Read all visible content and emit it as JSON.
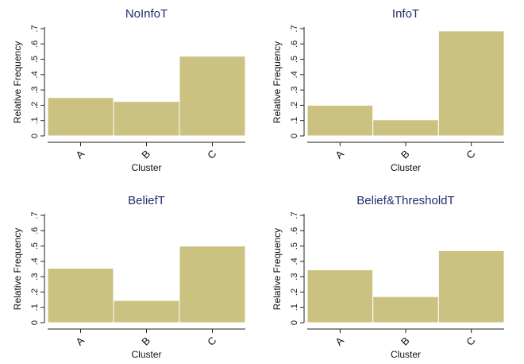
{
  "chart_data": [
    {
      "type": "bar",
      "title": "NoInfoT",
      "xlabel": "Cluster",
      "ylabel": "Relative Frequency",
      "categories": [
        "A",
        "B",
        "C"
      ],
      "values": [
        0.25,
        0.225,
        0.52
      ],
      "ylim": [
        0,
        0.7
      ],
      "yticks": [
        "0",
        ".1",
        ".2",
        ".3",
        ".4",
        ".5",
        ".6",
        ".7"
      ],
      "bar_color": "#cbc281",
      "grid": false
    },
    {
      "type": "bar",
      "title": "InfoT",
      "xlabel": "Cluster",
      "ylabel": "Relative Frequency",
      "categories": [
        "A",
        "B",
        "C"
      ],
      "values": [
        0.2,
        0.105,
        0.685
      ],
      "ylim": [
        0,
        0.7
      ],
      "yticks": [
        "0",
        ".1",
        ".2",
        ".3",
        ".4",
        ".5",
        ".6",
        ".7"
      ],
      "bar_color": "#cbc281",
      "grid": false
    },
    {
      "type": "bar",
      "title": "BeliefT",
      "xlabel": "Cluster",
      "ylabel": "Relative Frequency",
      "categories": [
        "A",
        "B",
        "C"
      ],
      "values": [
        0.355,
        0.145,
        0.5
      ],
      "ylim": [
        0,
        0.7
      ],
      "yticks": [
        "0",
        ".1",
        ".2",
        ".3",
        ".4",
        ".5",
        ".6",
        ".7"
      ],
      "bar_color": "#cbc281",
      "grid": false
    },
    {
      "type": "bar",
      "title": "Belief&ThresholdT",
      "xlabel": "Cluster",
      "ylabel": "Relative Frequency",
      "categories": [
        "A",
        "B",
        "C"
      ],
      "values": [
        0.345,
        0.17,
        0.47
      ],
      "ylim": [
        0,
        0.7
      ],
      "yticks": [
        "0",
        ".1",
        ".2",
        ".3",
        ".4",
        ".5",
        ".6",
        ".7"
      ],
      "bar_color": "#cbc281",
      "grid": false
    }
  ]
}
